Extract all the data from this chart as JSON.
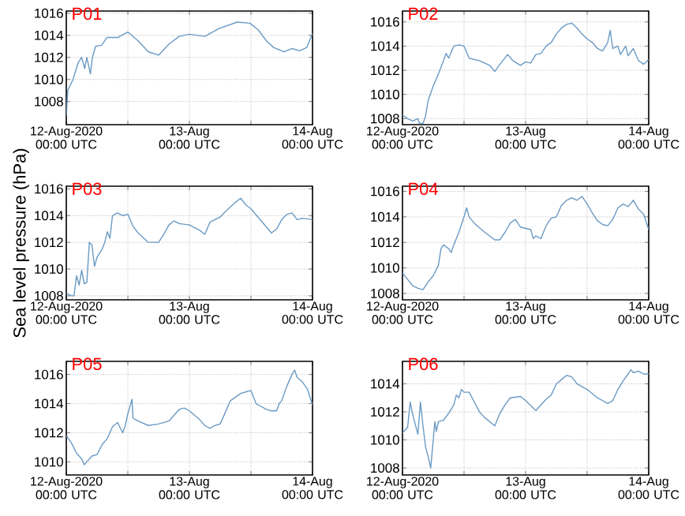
{
  "chart_data": [
    {
      "type": "line",
      "title": "P01",
      "grid": true,
      "xlim": [
        "2020-08-12T00:00",
        "2020-08-14T00:00"
      ],
      "ylim": [
        1005.9,
        1016.2
      ],
      "xticks": [
        {
          "value": "2020-08-12T00:00",
          "label": "12-Aug-2020 00:00 UTC"
        },
        {
          "value": "2020-08-12T12:00",
          "label": null
        },
        {
          "value": "2020-08-13T00:00",
          "label": "13-Aug 00:00 UTC"
        },
        {
          "value": "2020-08-13T12:00",
          "label": null
        },
        {
          "value": "2020-08-14T00:00",
          "label": "14-Aug 00:00 UTC"
        }
      ],
      "yticks": [
        1008,
        1010,
        1012,
        1014,
        1016
      ],
      "x": [
        "2020-08-12T00:00",
        "2020-08-12T00:18",
        "2020-08-12T01:18",
        "2020-08-12T02:18",
        "2020-08-12T03:00",
        "2020-08-12T03:36",
        "2020-08-12T04:00",
        "2020-08-12T04:42",
        "2020-08-12T05:06",
        "2020-08-12T05:42",
        "2020-08-12T06:54",
        "2020-08-12T07:54",
        "2020-08-12T10:00",
        "2020-08-12T12:00",
        "2020-08-12T14:00",
        "2020-08-12T16:00",
        "2020-08-12T18:00",
        "2020-08-12T20:00",
        "2020-08-12T22:00",
        "2020-08-13T00:00",
        "2020-08-13T03:00",
        "2020-08-13T05:42",
        "2020-08-13T09:18",
        "2020-08-13T11:48",
        "2020-08-13T13:24",
        "2020-08-13T15:00",
        "2020-08-13T16:24",
        "2020-08-13T18:24",
        "2020-08-13T20:00",
        "2020-08-13T21:30",
        "2020-08-13T22:54",
        "2020-08-14T00:00"
      ],
      "series": [
        {
          "color": "#6a9ac4",
          "values": [
            1006.7,
            1009,
            1010,
            1011.5,
            1012,
            1011,
            1012,
            1010.5,
            1012,
            1013,
            1013.1,
            1013.8,
            1013.8,
            1014.3,
            1013.5,
            1012.5,
            1012.2,
            1013.2,
            1013.9,
            1014.1,
            1013.9,
            1014.6,
            1015.2,
            1015.1,
            1014.5,
            1013.5,
            1012.9,
            1012.5,
            1012.8,
            1012.6,
            1012.9,
            1014.2
          ]
        }
      ]
    },
    {
      "type": "line",
      "title": "P02",
      "grid": true,
      "xlim": [
        "2020-08-12T00:00",
        "2020-08-14T00:00"
      ],
      "ylim": [
        1007.5,
        1016.9
      ],
      "xticks": [
        {
          "value": "2020-08-12T00:00",
          "label": "12-Aug-2020 00:00 UTC"
        },
        {
          "value": "2020-08-12T12:00",
          "label": null
        },
        {
          "value": "2020-08-13T00:00",
          "label": "13-Aug 00:00 UTC"
        },
        {
          "value": "2020-08-13T12:00",
          "label": null
        },
        {
          "value": "2020-08-14T00:00",
          "label": "14-Aug 00:00 UTC"
        }
      ],
      "yticks": [
        1008,
        1010,
        1012,
        1014,
        1016
      ],
      "x": [
        "2020-08-12T00:00",
        "2020-08-12T01:00",
        "2020-08-12T02:00",
        "2020-08-12T03:00",
        "2020-08-12T03:18",
        "2020-08-12T04:00",
        "2020-08-12T04:30",
        "2020-08-12T05:00",
        "2020-08-12T06:00",
        "2020-08-12T07:00",
        "2020-08-12T08:00",
        "2020-08-12T08:30",
        "2020-08-12T09:00",
        "2020-08-12T10:00",
        "2020-08-12T11:00",
        "2020-08-12T12:00",
        "2020-08-12T13:00",
        "2020-08-12T15:00",
        "2020-08-12T17:00",
        "2020-08-12T18:00",
        "2020-08-12T19:00",
        "2020-08-12T20:30",
        "2020-08-12T21:30",
        "2020-08-12T23:00",
        "2020-08-13T00:00",
        "2020-08-13T01:00",
        "2020-08-13T02:00",
        "2020-08-13T03:00",
        "2020-08-13T04:00",
        "2020-08-13T05:00",
        "2020-08-13T06:00",
        "2020-08-13T07:00",
        "2020-08-13T08:00",
        "2020-08-13T09:00",
        "2020-08-13T10:00",
        "2020-08-13T11:00",
        "2020-08-13T12:00",
        "2020-08-13T13:00",
        "2020-08-13T14:00",
        "2020-08-13T15:00",
        "2020-08-13T16:00",
        "2020-08-13T16:30",
        "2020-08-13T17:00",
        "2020-08-13T18:00",
        "2020-08-13T18:30",
        "2020-08-13T19:30",
        "2020-08-13T20:00",
        "2020-08-13T21:00",
        "2020-08-13T22:00",
        "2020-08-13T23:00",
        "2020-08-14T00:00"
      ],
      "series": [
        {
          "color": "#6a9ac4",
          "values": [
            1008.3,
            1008.0,
            1007.8,
            1008.0,
            1007.6,
            1007.6,
            1008.2,
            1009.5,
            1010.7,
            1011.7,
            1012.8,
            1013.4,
            1013.0,
            1014.0,
            1014.1,
            1014.0,
            1013.0,
            1012.8,
            1012.4,
            1011.9,
            1012.5,
            1013.3,
            1012.8,
            1012.4,
            1012.7,
            1012.6,
            1013.3,
            1013.4,
            1014.0,
            1014.3,
            1015.0,
            1015.5,
            1015.8,
            1015.9,
            1015.5,
            1015.0,
            1014.6,
            1014.3,
            1013.8,
            1013.6,
            1014.3,
            1015.3,
            1013.8,
            1014.0,
            1013.3,
            1014.0,
            1013.2,
            1013.8,
            1012.8,
            1012.5,
            1012.9
          ]
        }
      ]
    },
    {
      "type": "line",
      "title": "P03",
      "ylabel": "Sea level pressure (hPa)",
      "grid": true,
      "xlim": [
        "2020-08-12T00:00",
        "2020-08-14T00:00"
      ],
      "ylim": [
        1007.7,
        1016.2
      ],
      "xticks": [
        {
          "value": "2020-08-12T00:00",
          "label": "12-Aug-2020 00:00 UTC"
        },
        {
          "value": "2020-08-12T12:00",
          "label": null
        },
        {
          "value": "2020-08-13T00:00",
          "label": "13-Aug 00:00 UTC"
        },
        {
          "value": "2020-08-13T12:00",
          "label": null
        },
        {
          "value": "2020-08-14T00:00",
          "label": "14-Aug 00:00 UTC"
        }
      ],
      "yticks": [
        1008,
        1010,
        1012,
        1014,
        1016
      ],
      "x": [
        "2020-08-12T00:00",
        "2020-08-12T01:00",
        "2020-08-12T01:30",
        "2020-08-12T02:00",
        "2020-08-12T02:30",
        "2020-08-12T03:00",
        "2020-08-12T03:30",
        "2020-08-12T04:00",
        "2020-08-12T04:30",
        "2020-08-12T05:00",
        "2020-08-12T05:30",
        "2020-08-12T06:00",
        "2020-08-12T07:00",
        "2020-08-12T07:30",
        "2020-08-12T08:00",
        "2020-08-12T08:30",
        "2020-08-12T09:00",
        "2020-08-12T10:00",
        "2020-08-12T11:00",
        "2020-08-12T12:00",
        "2020-08-12T13:00",
        "2020-08-12T14:00",
        "2020-08-12T16:00",
        "2020-08-12T18:00",
        "2020-08-12T19:00",
        "2020-08-12T20:00",
        "2020-08-12T21:00",
        "2020-08-12T22:00",
        "2020-08-13T00:00",
        "2020-08-13T02:00",
        "2020-08-13T03:00",
        "2020-08-13T04:00",
        "2020-08-13T06:00",
        "2020-08-13T07:00",
        "2020-08-13T09:00",
        "2020-08-13T10:00",
        "2020-08-13T11:00",
        "2020-08-13T12:00",
        "2020-08-13T14:00",
        "2020-08-13T16:00",
        "2020-08-13T17:00",
        "2020-08-13T18:00",
        "2020-08-13T19:00",
        "2020-08-13T20:00",
        "2020-08-13T21:00",
        "2020-08-13T22:00",
        "2020-08-14T00:00"
      ],
      "series": [
        {
          "color": "#6a9ac4",
          "values": [
            1008.2,
            1008.0,
            1008.0,
            1009.5,
            1008.8,
            1009.9,
            1008.9,
            1009.0,
            1012.0,
            1011.8,
            1010.2,
            1010.9,
            1011.5,
            1012.0,
            1012.8,
            1012.3,
            1014.0,
            1014.2,
            1014.0,
            1014.1,
            1013.2,
            1012.7,
            1012.0,
            1012.0,
            1012.6,
            1013.3,
            1013.6,
            1013.4,
            1013.3,
            1012.9,
            1012.6,
            1013.5,
            1013.9,
            1014.3,
            1015.0,
            1015.3,
            1014.8,
            1014.5,
            1013.6,
            1012.7,
            1013.0,
            1013.7,
            1014.1,
            1014.2,
            1013.7,
            1013.8,
            1013.7
          ]
        }
      ]
    },
    {
      "type": "line",
      "title": "P04",
      "grid": true,
      "xlim": [
        "2020-08-12T00:00",
        "2020-08-14T00:00"
      ],
      "ylim": [
        1007.5,
        1016.4
      ],
      "xticks": [
        {
          "value": "2020-08-12T00:00",
          "label": "12-Aug-2020 00:00 UTC"
        },
        {
          "value": "2020-08-12T12:00",
          "label": null
        },
        {
          "value": "2020-08-13T00:00",
          "label": "13-Aug 00:00 UTC"
        },
        {
          "value": "2020-08-13T12:00",
          "label": null
        },
        {
          "value": "2020-08-14T00:00",
          "label": "14-Aug 00:00 UTC"
        }
      ],
      "yticks": [
        1008,
        1010,
        1012,
        1014,
        1016
      ],
      "x": [
        "2020-08-12T00:00",
        "2020-08-12T01:00",
        "2020-08-12T02:00",
        "2020-08-12T03:00",
        "2020-08-12T04:00",
        "2020-08-12T05:00",
        "2020-08-12T06:00",
        "2020-08-12T07:00",
        "2020-08-12T07:30",
        "2020-08-12T08:00",
        "2020-08-12T09:00",
        "2020-08-12T09:30",
        "2020-08-12T10:00",
        "2020-08-12T11:00",
        "2020-08-12T12:00",
        "2020-08-12T12:30",
        "2020-08-12T13:00",
        "2020-08-12T14:00",
        "2020-08-12T16:00",
        "2020-08-12T18:00",
        "2020-08-12T19:00",
        "2020-08-12T20:00",
        "2020-08-12T21:00",
        "2020-08-12T22:00",
        "2020-08-12T23:00",
        "2020-08-13T00:00",
        "2020-08-13T01:00",
        "2020-08-13T01:30",
        "2020-08-13T02:00",
        "2020-08-13T03:00",
        "2020-08-13T04:00",
        "2020-08-13T05:00",
        "2020-08-13T06:00",
        "2020-08-13T07:00",
        "2020-08-13T08:00",
        "2020-08-13T09:00",
        "2020-08-13T10:00",
        "2020-08-13T11:00",
        "2020-08-13T12:00",
        "2020-08-13T13:00",
        "2020-08-13T14:00",
        "2020-08-13T15:00",
        "2020-08-13T16:00",
        "2020-08-13T17:00",
        "2020-08-13T18:00",
        "2020-08-13T19:00",
        "2020-08-13T20:00",
        "2020-08-13T21:00",
        "2020-08-13T22:00",
        "2020-08-13T23:00",
        "2020-08-14T00:00"
      ],
      "series": [
        {
          "color": "#6a9ac4",
          "values": [
            1009.6,
            1009.1,
            1008.6,
            1008.4,
            1008.3,
            1008.9,
            1009.4,
            1010.2,
            1011.5,
            1011.8,
            1011.5,
            1011.2,
            1011.8,
            1012.8,
            1014.0,
            1014.7,
            1014.0,
            1013.5,
            1012.8,
            1012.2,
            1012.2,
            1012.8,
            1013.5,
            1013.8,
            1013.2,
            1013.1,
            1013.0,
            1012.3,
            1012.5,
            1012.3,
            1013.3,
            1013.9,
            1014.0,
            1014.9,
            1015.3,
            1015.5,
            1015.3,
            1015.6,
            1015.0,
            1014.3,
            1013.7,
            1013.4,
            1013.3,
            1013.8,
            1014.7,
            1015.0,
            1014.8,
            1015.3,
            1014.6,
            1014.2,
            1013.0
          ]
        }
      ]
    },
    {
      "type": "line",
      "title": "P05",
      "grid": true,
      "xlim": [
        "2020-08-12T00:00",
        "2020-08-14T00:00"
      ],
      "ylim": [
        1009.1,
        1016.9
      ],
      "xticks": [
        {
          "value": "2020-08-12T00:00",
          "label": "12-Aug-2020 00:00 UTC"
        },
        {
          "value": "2020-08-12T12:00",
          "label": null
        },
        {
          "value": "2020-08-13T00:00",
          "label": "13-Aug 00:00 UTC"
        },
        {
          "value": "2020-08-13T12:00",
          "label": null
        },
        {
          "value": "2020-08-14T00:00",
          "label": "14-Aug 00:00 UTC"
        }
      ],
      "yticks": [
        1010,
        1012,
        1014,
        1016
      ],
      "x": [
        "2020-08-12T00:00",
        "2020-08-12T01:00",
        "2020-08-12T02:00",
        "2020-08-12T03:00",
        "2020-08-12T03:30",
        "2020-08-12T04:00",
        "2020-08-12T05:00",
        "2020-08-12T06:00",
        "2020-08-12T07:00",
        "2020-08-12T08:00",
        "2020-08-12T09:00",
        "2020-08-12T10:00",
        "2020-08-12T11:00",
        "2020-08-12T11:30",
        "2020-08-12T12:00",
        "2020-08-12T12:48",
        "2020-08-12T13:00",
        "2020-08-12T14:00",
        "2020-08-12T16:00",
        "2020-08-12T18:00",
        "2020-08-12T20:00",
        "2020-08-12T22:00",
        "2020-08-12T23:00",
        "2020-08-13T00:00",
        "2020-08-13T02:00",
        "2020-08-13T03:00",
        "2020-08-13T04:00",
        "2020-08-13T05:00",
        "2020-08-13T06:00",
        "2020-08-13T07:00",
        "2020-08-13T08:00",
        "2020-08-13T10:00",
        "2020-08-13T11:00",
        "2020-08-13T12:00",
        "2020-08-13T13:00",
        "2020-08-13T14:00",
        "2020-08-13T15:00",
        "2020-08-13T16:00",
        "2020-08-13T17:00",
        "2020-08-13T17:30",
        "2020-08-13T18:00",
        "2020-08-13T19:00",
        "2020-08-13T20:00",
        "2020-08-13T20:30",
        "2020-08-13T21:00",
        "2020-08-13T22:00",
        "2020-08-13T23:00",
        "2020-08-14T00:00"
      ],
      "series": [
        {
          "color": "#6a9ac4",
          "values": [
            1011.8,
            1011.3,
            1010.6,
            1010.2,
            1009.8,
            1010.0,
            1010.4,
            1010.5,
            1011.2,
            1011.6,
            1012.4,
            1012.7,
            1012.0,
            1012.5,
            1013.3,
            1014.3,
            1013.0,
            1012.8,
            1012.5,
            1012.6,
            1012.8,
            1013.6,
            1013.7,
            1013.5,
            1012.9,
            1012.5,
            1012.3,
            1012.5,
            1012.6,
            1013.4,
            1014.2,
            1014.7,
            1014.8,
            1014.9,
            1014.0,
            1013.8,
            1013.6,
            1013.5,
            1013.5,
            1014.0,
            1014.2,
            1015.2,
            1016.0,
            1016.3,
            1015.8,
            1015.5,
            1015.0,
            1013.9
          ]
        }
      ]
    },
    {
      "type": "line",
      "title": "P06",
      "grid": true,
      "xlim": [
        "2020-08-12T00:00",
        "2020-08-14T00:00"
      ],
      "ylim": [
        1007.5,
        1015.6
      ],
      "xticks": [
        {
          "value": "2020-08-12T00:00",
          "label": "12-Aug-2020 00:00 UTC"
        },
        {
          "value": "2020-08-12T12:00",
          "label": null
        },
        {
          "value": "2020-08-13T00:00",
          "label": "13-Aug 00:00 UTC"
        },
        {
          "value": "2020-08-13T12:00",
          "label": null
        },
        {
          "value": "2020-08-14T00:00",
          "label": "14-Aug 00:00 UTC"
        }
      ],
      "yticks": [
        1008,
        1010,
        1012,
        1014
      ],
      "x": [
        "2020-08-12T00:00",
        "2020-08-12T01:00",
        "2020-08-12T01:30",
        "2020-08-12T02:00",
        "2020-08-12T03:00",
        "2020-08-12T03:30",
        "2020-08-12T04:00",
        "2020-08-12T04:30",
        "2020-08-12T05:00",
        "2020-08-12T05:30",
        "2020-08-12T06:00",
        "2020-08-12T06:18",
        "2020-08-12T06:36",
        "2020-08-12T07:00",
        "2020-08-12T08:00",
        "2020-08-12T09:00",
        "2020-08-12T10:00",
        "2020-08-12T10:30",
        "2020-08-12T11:00",
        "2020-08-12T11:30",
        "2020-08-12T12:00",
        "2020-08-12T13:00",
        "2020-08-12T14:00",
        "2020-08-12T15:00",
        "2020-08-12T16:00",
        "2020-08-12T17:00",
        "2020-08-12T18:00",
        "2020-08-12T19:00",
        "2020-08-12T20:00",
        "2020-08-12T21:00",
        "2020-08-12T23:00",
        "2020-08-13T00:00",
        "2020-08-13T02:00",
        "2020-08-13T03:00",
        "2020-08-13T04:00",
        "2020-08-13T05:00",
        "2020-08-13T06:00",
        "2020-08-13T07:00",
        "2020-08-13T08:00",
        "2020-08-13T09:00",
        "2020-08-13T10:00",
        "2020-08-13T12:00",
        "2020-08-13T14:00",
        "2020-08-13T16:00",
        "2020-08-13T17:00",
        "2020-08-13T18:00",
        "2020-08-13T19:00",
        "2020-08-13T20:00",
        "2020-08-13T20:30",
        "2020-08-13T21:00",
        "2020-08-13T22:00",
        "2020-08-13T23:00",
        "2020-08-14T00:00"
      ],
      "series": [
        {
          "color": "#6a9ac4",
          "values": [
            1010.5,
            1010.9,
            1012.7,
            1011.8,
            1010.4,
            1012.7,
            1011.0,
            1009.5,
            1008.8,
            1008.0,
            1010.0,
            1011.3,
            1010.6,
            1011.3,
            1011.4,
            1011.9,
            1012.5,
            1013.2,
            1013.0,
            1013.6,
            1013.4,
            1013.4,
            1012.7,
            1012.0,
            1011.6,
            1011.3,
            1011.0,
            1011.9,
            1012.5,
            1013.0,
            1013.1,
            1012.8,
            1012.1,
            1012.5,
            1012.9,
            1013.2,
            1014.0,
            1014.3,
            1014.6,
            1014.5,
            1014.0,
            1013.6,
            1013.0,
            1012.6,
            1012.8,
            1013.6,
            1014.2,
            1014.7,
            1015.0,
            1014.8,
            1014.9,
            1014.7,
            1014.7
          ]
        }
      ]
    }
  ]
}
